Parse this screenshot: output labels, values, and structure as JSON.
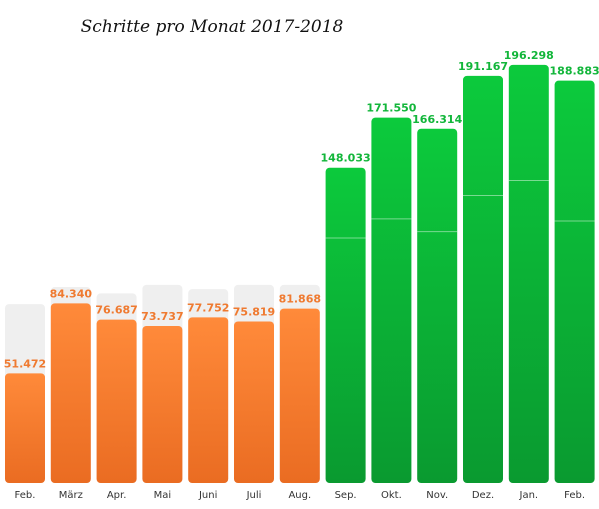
{
  "chart_data": {
    "type": "bar",
    "title": "Schritte pro Monat 2017-2018",
    "xlabel": "",
    "ylabel": "",
    "ylim": [
      0,
      200000
    ],
    "grid": false,
    "categories": [
      "Feb.",
      "März",
      "Apr.",
      "Mai",
      "Juni",
      "Juli",
      "Aug.",
      "Sep.",
      "Okt.",
      "Nov.",
      "Dez.",
      "Jan.",
      "Feb."
    ],
    "values": [
      51472,
      84340,
      76687,
      73737,
      77752,
      75819,
      81868,
      148033,
      171550,
      166314,
      191167,
      196298,
      188883
    ],
    "labels": [
      "51.472",
      "84.340",
      "76.687",
      "73.737",
      "77.752",
      "75.819",
      "81.868",
      "148.033",
      "171.550",
      "166.314",
      "191.167",
      "196.298",
      "188.883"
    ],
    "background_values": [
      84000,
      92000,
      89000,
      93000,
      91000,
      93000,
      93000,
      null,
      null,
      null,
      null,
      null,
      null
    ],
    "inner_line_values": [
      null,
      null,
      null,
      null,
      null,
      null,
      null,
      115000,
      124000,
      118000,
      135000,
      142000,
      123000
    ],
    "colors": {
      "orange_top": "#ff8a3a",
      "orange_bottom": "#ea6c22",
      "orange_label": "#ef7a30",
      "green_top": "#0cca3c",
      "green_bottom": "#0a9a30",
      "green_label": "#12b63a",
      "background_bar": "#efefef"
    }
  }
}
